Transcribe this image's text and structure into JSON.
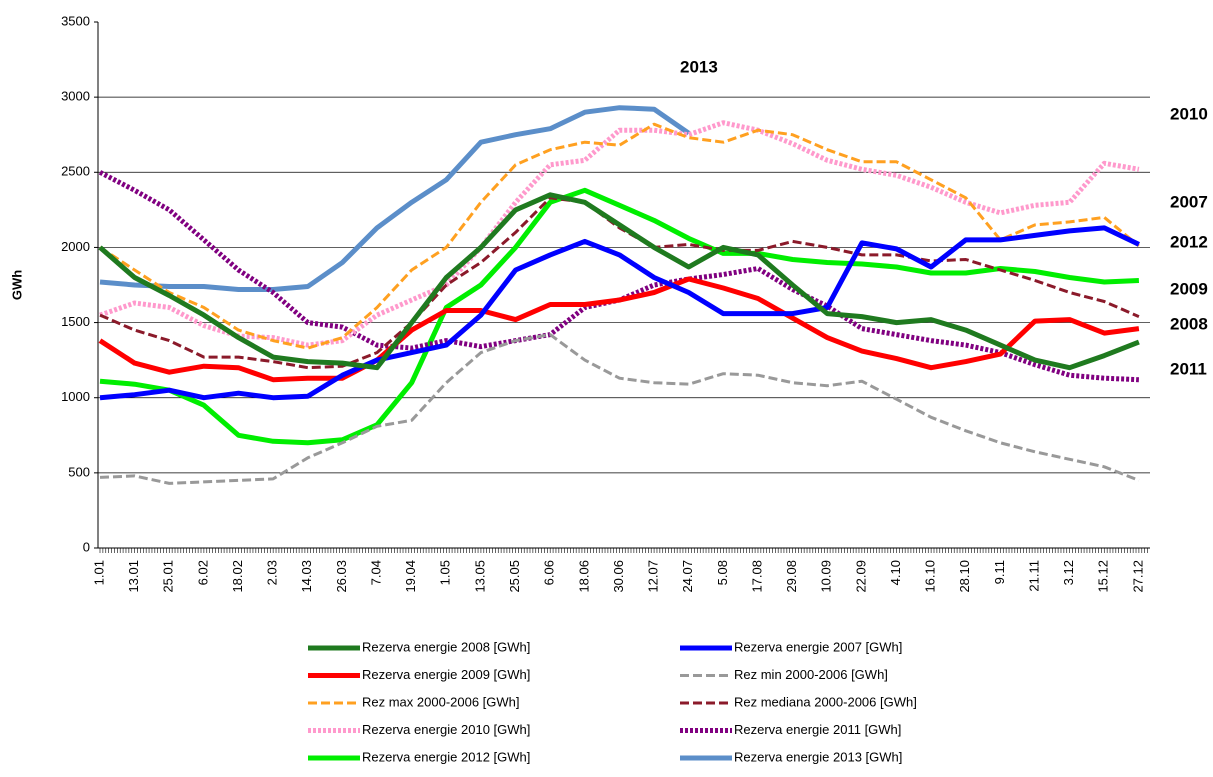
{
  "chart_data": {
    "type": "line",
    "y_label": "GWh",
    "categories": [
      "1.01",
      "13.01",
      "25.01",
      "6.02",
      "18.02",
      "2.03",
      "14.03",
      "26.03",
      "7.04",
      "19.04",
      "1.05",
      "13.05",
      "25.05",
      "6.06",
      "18.06",
      "30.06",
      "12.07",
      "24.07",
      "5.08",
      "17.08",
      "29.08",
      "10.09",
      "22.09",
      "4.10",
      "16.10",
      "28.10",
      "9.11",
      "21.11",
      "3.12",
      "15.12",
      "27.12"
    ],
    "ylim": [
      0,
      3500
    ],
    "yticks": [
      0,
      500,
      1000,
      1500,
      2000,
      2500,
      3000,
      3500
    ],
    "grid": true,
    "series": [
      {
        "name": "Rezerva energie 2008 [GWh]",
        "color": "#1f7a1f",
        "style": "solid",
        "values": [
          2000,
          1800,
          1680,
          1550,
          1400,
          1270,
          1240,
          1230,
          1200,
          1500,
          1800,
          2000,
          2250,
          2350,
          2300,
          2150,
          2000,
          1870,
          2000,
          1950,
          1750,
          1560,
          1540,
          1500,
          1520,
          1450,
          1350,
          1250,
          1200,
          1280,
          1370
        ]
      },
      {
        "name": "Rezerva energie 2007 [GWh]",
        "color": "#0000ff",
        "style": "solid",
        "values": [
          1000,
          1020,
          1050,
          1000,
          1030,
          1000,
          1010,
          1150,
          1250,
          1300,
          1350,
          1550,
          1850,
          1950,
          2040,
          1950,
          1800,
          1700,
          1560,
          1560,
          1560,
          1600,
          2030,
          1990,
          1870,
          2050,
          2050,
          2080,
          2110,
          2130,
          2020
        ]
      },
      {
        "name": "Rezerva energie 2009 [GWh]",
        "color": "#ff0000",
        "style": "solid",
        "values": [
          1380,
          1230,
          1170,
          1210,
          1200,
          1120,
          1130,
          1130,
          1250,
          1450,
          1580,
          1580,
          1520,
          1620,
          1620,
          1650,
          1700,
          1790,
          1730,
          1660,
          1530,
          1400,
          1310,
          1260,
          1200,
          1240,
          1290,
          1510,
          1520,
          1430,
          1460
        ]
      },
      {
        "name": "Rez min 2000-2006 [GWh]",
        "color": "#999999",
        "style": "dashed",
        "values": [
          470,
          480,
          430,
          440,
          450,
          460,
          600,
          700,
          810,
          850,
          1100,
          1300,
          1380,
          1420,
          1250,
          1130,
          1100,
          1090,
          1160,
          1150,
          1100,
          1080,
          1110,
          990,
          870,
          780,
          700,
          640,
          590,
          540,
          450
        ]
      },
      {
        "name": "Rez max 2000-2006 [GWh]",
        "color": "#ffa020",
        "style": "dashed",
        "values": [
          2000,
          1850,
          1700,
          1600,
          1450,
          1380,
          1330,
          1400,
          1600,
          1850,
          2000,
          2300,
          2550,
          2650,
          2700,
          2680,
          2820,
          2730,
          2700,
          2780,
          2750,
          2650,
          2570,
          2570,
          2450,
          2330,
          2050,
          2150,
          2170,
          2200,
          2010
        ]
      },
      {
        "name": "Rez mediana 2000-2006 [GWh]",
        "color": "#8b1a2a",
        "style": "dashed",
        "values": [
          1550,
          1450,
          1380,
          1270,
          1270,
          1240,
          1200,
          1210,
          1300,
          1500,
          1750,
          1900,
          2100,
          2330,
          2300,
          2130,
          2000,
          2020,
          1980,
          1980,
          2040,
          2000,
          1950,
          1950,
          1910,
          1920,
          1850,
          1780,
          1700,
          1640,
          1540
        ]
      },
      {
        "name": "Rezerva energie 2010 [GWh]",
        "color": "#ff99cc",
        "style": "dotted",
        "values": [
          1550,
          1630,
          1600,
          1480,
          1410,
          1400,
          1350,
          1380,
          1550,
          1650,
          1750,
          2000,
          2300,
          2550,
          2580,
          2780,
          2780,
          2750,
          2830,
          2780,
          2690,
          2580,
          2520,
          2480,
          2400,
          2300,
          2230,
          2280,
          2300,
          2560,
          2520
        ]
      },
      {
        "name": "Rezerva energie 2011 [GWh]",
        "color": "#800080",
        "style": "dotted",
        "values": [
          2500,
          2380,
          2250,
          2050,
          1850,
          1700,
          1500,
          1470,
          1350,
          1330,
          1380,
          1340,
          1380,
          1420,
          1600,
          1650,
          1750,
          1790,
          1820,
          1860,
          1720,
          1610,
          1460,
          1420,
          1380,
          1350,
          1300,
          1220,
          1150,
          1130,
          1120
        ]
      },
      {
        "name": "Rezerva energie 2012 [GWh]",
        "color": "#00ee00",
        "style": "solid",
        "values": [
          1110,
          1090,
          1050,
          950,
          750,
          710,
          700,
          720,
          820,
          1100,
          1600,
          1750,
          2000,
          2300,
          2380,
          2280,
          2180,
          2060,
          1960,
          1960,
          1920,
          1900,
          1890,
          1870,
          1830,
          1830,
          1860,
          1840,
          1800,
          1770,
          1780
        ]
      },
      {
        "name": "Rezerva energie 2013 [GWh]",
        "color": "#5b8ec9",
        "style": "solid",
        "values": [
          1770,
          1750,
          1740,
          1740,
          1720,
          1720,
          1740,
          1900,
          2130,
          2300,
          2450,
          2700,
          2750,
          2790,
          2900,
          2930,
          2920,
          2760,
          null,
          null,
          null,
          null,
          null,
          null,
          null,
          null,
          null,
          null,
          null,
          null,
          null
        ]
      }
    ],
    "annotations": [
      {
        "text": "2013",
        "color": "#5b8ec9"
      },
      {
        "text": "2010",
        "color": "#ff99cc"
      },
      {
        "text": "2007",
        "color": "#0000ff"
      },
      {
        "text": "2012",
        "color": "#000000"
      },
      {
        "text": "2009",
        "color": "#ff0000"
      },
      {
        "text": "2008",
        "color": "#1f7a1f"
      },
      {
        "text": "2011",
        "color": "#800080"
      }
    ]
  }
}
